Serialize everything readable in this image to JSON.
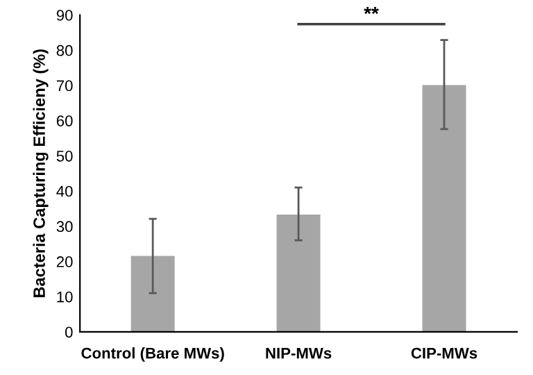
{
  "chart_data": {
    "type": "bar",
    "ylabel": "Bacteria Capturing Efficieny (%)",
    "categories": [
      "Control (Bare MWs)",
      "NIP-MWs",
      "CIP-MWs"
    ],
    "values": [
      21.6,
      33.3,
      70.1
    ],
    "color": "#a6a6a6",
    "errors": [
      [
        11.0,
        32.1
      ],
      [
        26.0,
        41.0
      ],
      [
        57.6,
        82.9
      ]
    ],
    "ylim": [
      0,
      90
    ],
    "yticks": [
      0,
      10,
      20,
      30,
      40,
      50,
      60,
      70,
      80,
      90
    ],
    "grid": false,
    "legend": false,
    "annotations": [
      "**"
    ]
  }
}
